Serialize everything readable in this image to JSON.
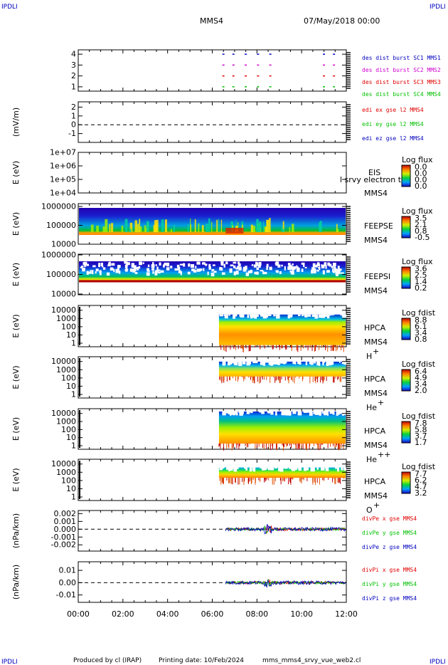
{
  "header": {
    "corner_label": "IPDLI",
    "mission": "MMS4",
    "datetime": "07/May/2018 00:00"
  },
  "footer": {
    "produced_by": "Produced by cl (IRAP)",
    "printing_date": "Printing date: 10/Feb/2024",
    "file_name": "mms_mms4_srvy_vue_web2.cl"
  },
  "colors": {
    "red": "#e00000",
    "green": "#00c000",
    "blue": "#0000c0",
    "magenta": "#d000d0"
  },
  "chart_data": [
    {
      "type": "scatter",
      "yticks": [
        "1",
        "2",
        "3",
        "4"
      ],
      "ylim": [
        0.6,
        4.4
      ],
      "series": [
        {
          "name": "des dist burst SC1 MMS1",
          "color": "#0000c0",
          "y": 4
        },
        {
          "name": "des dist burst SC2 MMS2",
          "color": "#d000d0",
          "y": 3
        },
        {
          "name": "des dist burst SC3 MMS3",
          "color": "#e00000",
          "y": 2
        },
        {
          "name": "des dist burst SC4 MMS4",
          "color": "#00c000",
          "y": 1
        }
      ],
      "burst_times_hours": [
        6.45,
        6.9,
        7.45,
        8.0,
        8.55,
        10.95,
        11.4
      ]
    },
    {
      "type": "line",
      "ylabel": "(mV/m)",
      "yticks": [
        "-1",
        "0",
        "1",
        "2"
      ],
      "ylim": [
        -2,
        2.6
      ],
      "series": [
        {
          "name": "edi ex gse l2 MMS4",
          "color": "#e00000"
        },
        {
          "name": "edi ey gse l2 MMS4",
          "color": "#00c000"
        },
        {
          "name": "edi ez gse l2 MMS4",
          "color": "#0000c0"
        }
      ]
    },
    {
      "type": "heatmap",
      "ylabel": "E (eV)",
      "yticks": [
        "1e+04",
        "1e+05",
        "1e+06",
        "1e+07"
      ],
      "instrument": "EIS",
      "sc": "MMS4",
      "overlay": "l srvy electron to",
      "colorbar_title": "Log flux",
      "colorbar_ticks": [
        "0.0",
        "0.0",
        "0.0",
        "0.0"
      ]
    },
    {
      "type": "heatmap",
      "ylabel": "E (eV)",
      "yticks": [
        "10000",
        "100000",
        "1000000"
      ],
      "instrument": "FEEPSE",
      "sc": "MMS4",
      "colorbar_title": "Log flux",
      "colorbar_ticks": [
        "3.5",
        "2.1",
        "0.8",
        "-0.5"
      ]
    },
    {
      "type": "heatmap",
      "ylabel": "E (eV)",
      "yticks": [
        "10000",
        "100000",
        "1000000"
      ],
      "instrument": "FEEPSI",
      "sc": "MMS4",
      "colorbar_title": "Log flux",
      "colorbar_ticks": [
        "3.6",
        "2.5",
        "1.4",
        "0.2"
      ]
    },
    {
      "type": "heatmap",
      "ylabel": "E (eV)",
      "yticks": [
        "1",
        "10",
        "100",
        "1000",
        "10000"
      ],
      "instrument": "HPCA",
      "sc": "MMS4",
      "species": "H",
      "charge": "+",
      "colorbar_title": "Log fdist",
      "colorbar_ticks": [
        "8.8",
        "6.1",
        "3.4",
        "0.8"
      ]
    },
    {
      "type": "heatmap",
      "ylabel": "E (eV)",
      "yticks": [
        "1",
        "10",
        "100",
        "1000",
        "10000"
      ],
      "instrument": "HPCA",
      "sc": "MMS4",
      "species": "He",
      "charge": "+",
      "colorbar_title": "Log fdist",
      "colorbar_ticks": [
        "6.4",
        "4.9",
        "3.4",
        "2.0"
      ]
    },
    {
      "type": "heatmap",
      "ylabel": "E (eV)",
      "yticks": [
        "1",
        "10",
        "100",
        "1000",
        "10000"
      ],
      "instrument": "HPCA",
      "sc": "MMS4",
      "species": "He",
      "charge": "++",
      "colorbar_title": "Log fdist",
      "colorbar_ticks": [
        "7.8",
        "5.8",
        "3.7",
        "1.7"
      ]
    },
    {
      "type": "heatmap",
      "ylabel": "E (eV)",
      "yticks": [
        "1",
        "10",
        "100",
        "1000",
        "10000"
      ],
      "instrument": "HPCA",
      "sc": "MMS4",
      "species": "O",
      "charge": "+",
      "colorbar_title": "Log fdist",
      "colorbar_ticks": [
        "7.7",
        "6.2",
        "4.7",
        "3.2"
      ]
    },
    {
      "type": "line",
      "ylabel": "(nPa/km)",
      "yticks": [
        "-0.002",
        "-0.001",
        "0.000",
        "0.001",
        "0.002"
      ],
      "ylim": [
        -0.0028,
        0.0024
      ],
      "series": [
        {
          "name": "divPe x gse MMS4",
          "color": "#e00000"
        },
        {
          "name": "divPe y gse MMS4",
          "color": "#00c000"
        },
        {
          "name": "divPe z gse MMS4",
          "color": "#0000c0"
        }
      ]
    },
    {
      "type": "line",
      "ylabel": "(nPa/km)",
      "yticks": [
        "-0.01",
        "0.00",
        "0.01"
      ],
      "ylim": [
        -0.016,
        0.017
      ],
      "series": [
        {
          "name": "divPi x gse MMS4",
          "color": "#e00000"
        },
        {
          "name": "divPi y gse MMS4",
          "color": "#00c000"
        },
        {
          "name": "divPi z gse MMS4",
          "color": "#0000c0"
        }
      ]
    }
  ],
  "time_axis": {
    "ticks": [
      "00:00",
      "02:00",
      "04:00",
      "06:00",
      "08:00",
      "10:00",
      "12:00"
    ],
    "xlim_hours": [
      0,
      12
    ],
    "data_start_hours": 6.3,
    "activity_start_hours": 6.6
  }
}
